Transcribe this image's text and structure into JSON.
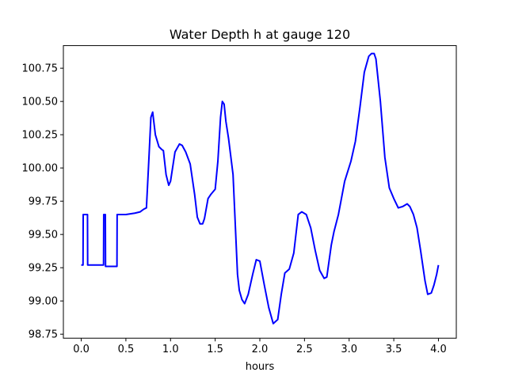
{
  "chart_data": {
    "type": "line",
    "title": "Water Depth h at gauge 120",
    "xlabel": "hours",
    "ylabel": "",
    "xlim": [
      -0.2,
      4.2
    ],
    "ylim": [
      98.72,
      100.92
    ],
    "xticks": [
      0.0,
      0.5,
      1.0,
      1.5,
      2.0,
      2.5,
      3.0,
      3.5,
      4.0
    ],
    "xtick_labels": [
      "0.0",
      "0.5",
      "1.0",
      "1.5",
      "2.0",
      "2.5",
      "3.0",
      "3.5",
      "4.0"
    ],
    "yticks": [
      98.75,
      99.0,
      99.25,
      99.5,
      99.75,
      100.0,
      100.25,
      100.5,
      100.75
    ],
    "ytick_labels": [
      "98.75",
      "99.00",
      "99.25",
      "99.50",
      "99.75",
      "100.00",
      "100.25",
      "100.50",
      "100.75"
    ],
    "grid": false,
    "series": [
      {
        "color": "#0000ff",
        "x": [
          0.0,
          0.02,
          0.022,
          0.07,
          0.072,
          0.25,
          0.252,
          0.27,
          0.272,
          0.4,
          0.402,
          0.5,
          0.6,
          0.66,
          0.7,
          0.73,
          0.76,
          0.78,
          0.8,
          0.83,
          0.87,
          0.9,
          0.92,
          0.95,
          0.98,
          1.0,
          1.05,
          1.1,
          1.13,
          1.17,
          1.22,
          1.27,
          1.3,
          1.33,
          1.36,
          1.38,
          1.42,
          1.45,
          1.5,
          1.53,
          1.56,
          1.58,
          1.6,
          1.62,
          1.65,
          1.7,
          1.73,
          1.75,
          1.77,
          1.8,
          1.83,
          1.87,
          1.92,
          1.96,
          2.0,
          2.05,
          2.1,
          2.15,
          2.2,
          2.24,
          2.28,
          2.33,
          2.38,
          2.43,
          2.47,
          2.52,
          2.57,
          2.62,
          2.67,
          2.72,
          2.75,
          2.8,
          2.83,
          2.88,
          2.95,
          3.02,
          3.07,
          3.12,
          3.17,
          3.22,
          3.25,
          3.28,
          3.3,
          3.35,
          3.4,
          3.45,
          3.5,
          3.55,
          3.6,
          3.65,
          3.68,
          3.72,
          3.76,
          3.8,
          3.85,
          3.88,
          3.92,
          3.95,
          3.98,
          4.0
        ],
        "y": [
          99.27,
          99.27,
          99.65,
          99.65,
          99.27,
          99.27,
          99.65,
          99.65,
          99.26,
          99.26,
          99.65,
          99.65,
          99.66,
          99.67,
          99.69,
          99.7,
          100.1,
          100.38,
          100.42,
          100.25,
          100.16,
          100.14,
          100.13,
          99.95,
          99.87,
          99.9,
          100.12,
          100.18,
          100.17,
          100.12,
          100.03,
          99.8,
          99.63,
          99.58,
          99.58,
          99.62,
          99.77,
          99.8,
          99.84,
          100.05,
          100.38,
          100.5,
          100.48,
          100.35,
          100.22,
          99.95,
          99.5,
          99.2,
          99.08,
          99.01,
          98.98,
          99.05,
          99.2,
          99.31,
          99.3,
          99.12,
          98.95,
          98.83,
          98.86,
          99.05,
          99.21,
          99.24,
          99.36,
          99.65,
          99.67,
          99.65,
          99.55,
          99.38,
          99.23,
          99.17,
          99.18,
          99.42,
          99.52,
          99.65,
          99.9,
          100.05,
          100.2,
          100.45,
          100.72,
          100.84,
          100.86,
          100.86,
          100.82,
          100.5,
          100.08,
          99.85,
          99.77,
          99.7,
          99.71,
          99.73,
          99.71,
          99.65,
          99.55,
          99.38,
          99.15,
          99.05,
          99.06,
          99.12,
          99.2,
          99.27
        ]
      }
    ]
  }
}
